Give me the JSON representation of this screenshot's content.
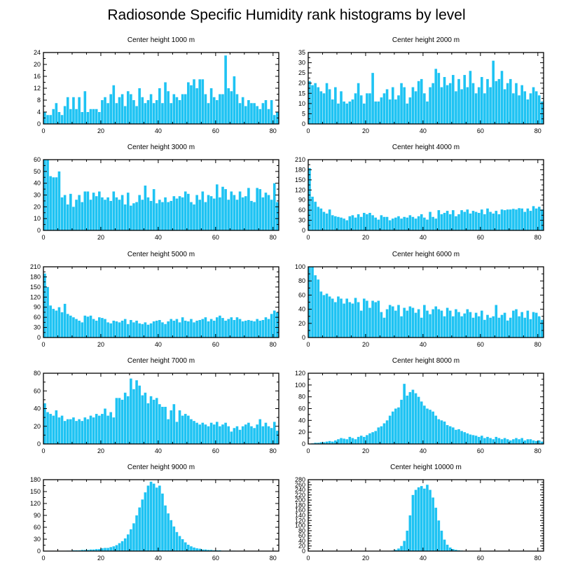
{
  "title": "Radiosonde Specific Humidity rank histograms by level",
  "colors": {
    "bar": "#1ec3f3",
    "axis": "#000000",
    "background": "#ffffff"
  },
  "chart_data": [
    {
      "type": "bar",
      "title": "Center height 1000 m",
      "x": {
        "min": 0,
        "max": 82,
        "ticks": [
          0,
          20,
          40,
          60,
          80
        ]
      },
      "y": {
        "min": 0,
        "max": 24,
        "ticks": [
          0,
          4,
          8,
          12,
          16,
          20,
          24
        ]
      },
      "values": [
        4,
        3,
        3,
        5,
        7,
        4,
        3,
        6,
        9,
        5,
        9,
        5,
        9,
        4,
        11,
        4,
        5,
        5,
        5,
        4,
        8,
        9,
        7,
        10,
        13,
        7,
        9,
        10,
        6,
        11,
        10,
        8,
        6,
        12,
        9,
        7,
        8,
        10,
        7,
        8,
        12,
        7,
        14,
        11,
        7,
        10,
        9,
        8,
        10,
        10,
        14,
        13,
        15,
        12,
        15,
        15,
        10,
        7,
        12,
        9,
        8,
        10,
        10,
        23,
        12,
        11,
        16,
        10,
        7,
        9,
        6,
        8,
        7,
        7,
        6,
        5,
        7,
        8,
        5,
        8,
        3,
        4
      ]
    },
    {
      "type": "bar",
      "title": "Center height 2000 m",
      "x": {
        "min": 0,
        "max": 82,
        "ticks": [
          0,
          20,
          40,
          60,
          80
        ]
      },
      "y": {
        "min": 0,
        "max": 35,
        "ticks": [
          0,
          5,
          10,
          15,
          20,
          25,
          30,
          35
        ]
      },
      "values": [
        21,
        19,
        20,
        18,
        16,
        15,
        20,
        17,
        12,
        18,
        10,
        16,
        11,
        10,
        11,
        12,
        15,
        20,
        14,
        10,
        15,
        15,
        25,
        11,
        11,
        13,
        15,
        17,
        12,
        18,
        12,
        14,
        20,
        18,
        10,
        13,
        18,
        16,
        21,
        22,
        15,
        11,
        18,
        20,
        27,
        25,
        18,
        23,
        19,
        20,
        24,
        16,
        22,
        17,
        24,
        18,
        26,
        20,
        15,
        18,
        23,
        15,
        22,
        18,
        31,
        21,
        22,
        26,
        17,
        20,
        22,
        15,
        20,
        14,
        19,
        16,
        12,
        15,
        18,
        16,
        14,
        11
      ]
    },
    {
      "type": "bar",
      "title": "Center height 3000 m",
      "x": {
        "min": 0,
        "max": 82,
        "ticks": [
          0,
          20,
          40,
          60,
          80
        ]
      },
      "y": {
        "min": 0,
        "max": 60,
        "ticks": [
          0,
          10,
          20,
          30,
          40,
          50,
          60
        ]
      },
      "values": [
        60,
        60,
        46,
        45,
        45,
        50,
        28,
        30,
        22,
        31,
        20,
        26,
        30,
        24,
        33,
        33,
        26,
        32,
        29,
        33,
        28,
        26,
        28,
        25,
        33,
        28,
        26,
        30,
        22,
        32,
        21,
        23,
        24,
        30,
        26,
        38,
        28,
        25,
        35,
        23,
        26,
        24,
        28,
        24,
        25,
        29,
        27,
        29,
        28,
        33,
        31,
        24,
        22,
        30,
        26,
        33,
        24,
        30,
        29,
        27,
        39,
        28,
        37,
        35,
        26,
        33,
        30,
        26,
        33,
        28,
        29,
        36,
        25,
        24,
        36,
        35,
        28,
        32,
        30,
        26,
        40,
        24
      ]
    },
    {
      "type": "bar",
      "title": "Center height 4000 m",
      "x": {
        "min": 0,
        "max": 82,
        "ticks": [
          0,
          20,
          40,
          60,
          80
        ]
      },
      "y": {
        "min": 0,
        "max": 210,
        "ticks": [
          0,
          30,
          60,
          90,
          120,
          150,
          180,
          210
        ]
      },
      "values": [
        185,
        100,
        85,
        70,
        65,
        55,
        50,
        62,
        45,
        42,
        40,
        38,
        35,
        30,
        42,
        45,
        38,
        48,
        40,
        52,
        48,
        52,
        45,
        38,
        32,
        45,
        40,
        40,
        30,
        35,
        38,
        42,
        35,
        40,
        38,
        45,
        40,
        35,
        42,
        48,
        38,
        32,
        55,
        40,
        35,
        60,
        48,
        52,
        58,
        48,
        60,
        42,
        48,
        60,
        55,
        62,
        50,
        58,
        55,
        52,
        62,
        48,
        65,
        55,
        50,
        58,
        48,
        62,
        60,
        62,
        62,
        64,
        62,
        66,
        65,
        55,
        65,
        58,
        72,
        65,
        70,
        62
      ]
    },
    {
      "type": "bar",
      "title": "Center height 5000 m",
      "x": {
        "min": 0,
        "max": 82,
        "ticks": [
          0,
          20,
          40,
          60,
          80
        ]
      },
      "y": {
        "min": 0,
        "max": 210,
        "ticks": [
          0,
          30,
          60,
          90,
          120,
          150,
          180,
          210
        ]
      },
      "values": [
        190,
        150,
        95,
        85,
        80,
        90,
        75,
        100,
        70,
        65,
        60,
        55,
        50,
        45,
        65,
        62,
        65,
        55,
        50,
        60,
        58,
        55,
        45,
        42,
        50,
        48,
        45,
        50,
        55,
        40,
        52,
        45,
        50,
        42,
        40,
        45,
        38,
        42,
        48,
        50,
        52,
        45,
        40,
        48,
        55,
        50,
        55,
        45,
        60,
        50,
        48,
        55,
        45,
        50,
        52,
        55,
        60,
        48,
        55,
        50,
        60,
        65,
        58,
        50,
        55,
        60,
        52,
        60,
        55,
        48,
        50,
        52,
        50,
        48,
        55,
        50,
        52,
        60,
        55,
        70,
        80,
        75
      ]
    },
    {
      "type": "bar",
      "title": "Center height 6000 m",
      "x": {
        "min": 0,
        "max": 82,
        "ticks": [
          0,
          20,
          40,
          60,
          80
        ]
      },
      "y": {
        "min": 0,
        "max": 100,
        "ticks": [
          0,
          20,
          40,
          60,
          80,
          100
        ]
      },
      "values": [
        100,
        100,
        88,
        82,
        65,
        60,
        62,
        58,
        55,
        50,
        58,
        55,
        48,
        55,
        50,
        48,
        56,
        50,
        38,
        55,
        52,
        42,
        52,
        50,
        52,
        36,
        28,
        40,
        46,
        44,
        38,
        46,
        30,
        42,
        38,
        44,
        42,
        35,
        40,
        28,
        46,
        38,
        33,
        40,
        44,
        40,
        38,
        30,
        42,
        38,
        30,
        40,
        36,
        30,
        34,
        40,
        36,
        28,
        35,
        30,
        38,
        25,
        32,
        28,
        30,
        46,
        28,
        32,
        35,
        24,
        28,
        38,
        40,
        30,
        36,
        28,
        38,
        26,
        36,
        35,
        30,
        25
      ]
    },
    {
      "type": "bar",
      "title": "Center height 7000 m",
      "x": {
        "min": 0,
        "max": 82,
        "ticks": [
          0,
          20,
          40,
          60,
          80
        ]
      },
      "y": {
        "min": 0,
        "max": 80,
        "ticks": [
          0,
          20,
          40,
          60,
          80
        ]
      },
      "values": [
        46,
        36,
        34,
        32,
        38,
        30,
        32,
        26,
        28,
        28,
        30,
        26,
        28,
        26,
        30,
        28,
        32,
        30,
        34,
        32,
        34,
        40,
        32,
        36,
        30,
        52,
        52,
        50,
        58,
        54,
        74,
        62,
        72,
        66,
        55,
        58,
        46,
        54,
        50,
        52,
        45,
        42,
        42,
        28,
        38,
        45,
        25,
        38,
        32,
        34,
        32,
        28,
        26,
        24,
        22,
        24,
        22,
        20,
        24,
        22,
        25,
        20,
        22,
        24,
        20,
        14,
        18,
        20,
        16,
        20,
        22,
        24,
        20,
        18,
        22,
        28,
        20,
        24,
        20,
        18,
        25,
        15
      ]
    },
    {
      "type": "bar",
      "title": "Center height 8000 m",
      "x": {
        "min": 0,
        "max": 82,
        "ticks": [
          0,
          20,
          40,
          60,
          80
        ]
      },
      "y": {
        "min": 0,
        "max": 120,
        "ticks": [
          0,
          20,
          40,
          60,
          80,
          100,
          120
        ]
      },
      "values": [
        0,
        1,
        2,
        2,
        3,
        3,
        4,
        5,
        4,
        6,
        8,
        10,
        9,
        8,
        12,
        10,
        8,
        12,
        14,
        12,
        15,
        18,
        20,
        22,
        28,
        30,
        35,
        40,
        48,
        55,
        60,
        62,
        75,
        102,
        82,
        88,
        92,
        86,
        80,
        72,
        65,
        60,
        58,
        55,
        48,
        42,
        40,
        38,
        32,
        30,
        28,
        24,
        25,
        22,
        20,
        18,
        16,
        15,
        14,
        12,
        14,
        10,
        12,
        10,
        8,
        12,
        10,
        8,
        10,
        8,
        6,
        8,
        10,
        8,
        10,
        6,
        8,
        8,
        6,
        5,
        6,
        4
      ]
    },
    {
      "type": "bar",
      "title": "Center height 9000 m",
      "x": {
        "min": 0,
        "max": 82,
        "ticks": [
          0,
          20,
          40,
          60,
          80
        ]
      },
      "y": {
        "min": 0,
        "max": 180,
        "ticks": [
          0,
          30,
          60,
          90,
          120,
          150,
          180
        ]
      },
      "values": [
        0,
        0,
        0,
        0,
        0,
        0,
        0,
        0,
        1,
        1,
        2,
        2,
        2,
        3,
        3,
        3,
        4,
        4,
        5,
        5,
        7,
        8,
        8,
        10,
        12,
        15,
        20,
        25,
        32,
        42,
        55,
        70,
        90,
        110,
        130,
        148,
        165,
        175,
        170,
        160,
        165,
        145,
        115,
        95,
        78,
        62,
        48,
        38,
        30,
        22,
        16,
        12,
        9,
        7,
        6,
        4,
        4,
        3,
        3,
        2,
        2,
        2,
        1,
        1,
        1,
        1,
        1,
        0,
        0,
        0,
        0,
        0,
        0,
        0,
        0,
        0,
        0,
        0,
        0,
        0,
        0,
        0
      ]
    },
    {
      "type": "bar",
      "title": "Center height 10000 m",
      "x": {
        "min": 0,
        "max": 82,
        "ticks": [
          0,
          20,
          40,
          60,
          80
        ]
      },
      "y": {
        "min": 0,
        "max": 280,
        "ticks": [
          0,
          20,
          40,
          60,
          80,
          100,
          120,
          140,
          160,
          180,
          200,
          220,
          240,
          260,
          280
        ]
      },
      "values": [
        0,
        0,
        0,
        0,
        0,
        0,
        0,
        0,
        0,
        0,
        0,
        0,
        0,
        0,
        0,
        0,
        0,
        0,
        0,
        0,
        0,
        0,
        0,
        0,
        0,
        0,
        0,
        0,
        1,
        2,
        5,
        10,
        20,
        40,
        80,
        140,
        220,
        240,
        250,
        255,
        245,
        260,
        240,
        210,
        170,
        120,
        80,
        45,
        25,
        14,
        8,
        5,
        3,
        2,
        1,
        1,
        0,
        0,
        0,
        0,
        0,
        0,
        0,
        0,
        0,
        0,
        0,
        0,
        0,
        0,
        0,
        0,
        0,
        0,
        0,
        0,
        0,
        0,
        0,
        0,
        0,
        0
      ]
    }
  ]
}
